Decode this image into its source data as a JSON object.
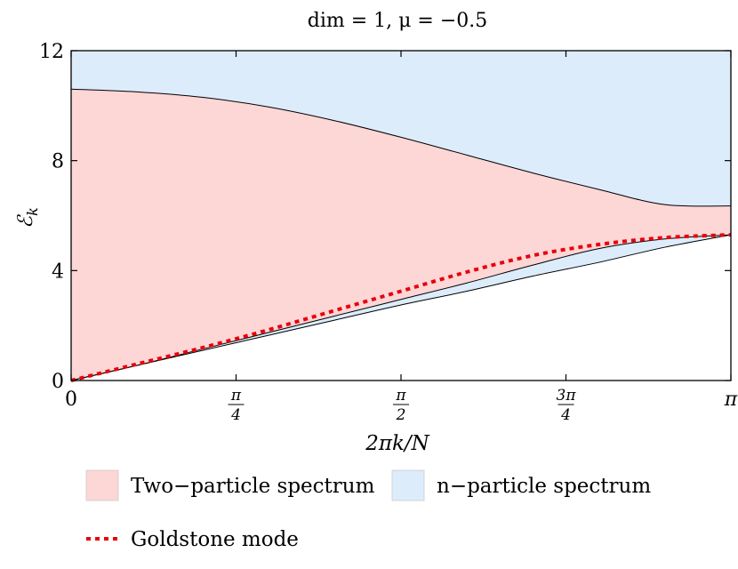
{
  "chart_data": {
    "type": "area",
    "title": "dim = 1, μ = −0.5",
    "xlabel": "2πk/N",
    "ylabel": "ℰ",
    "ylabel_sub": "k",
    "xlim": [
      0,
      3.14159
    ],
    "ylim": [
      0,
      12
    ],
    "yticks": [
      0,
      4,
      8,
      12
    ],
    "ytick_labels": [
      "0",
      "4",
      "8",
      "12"
    ],
    "xticks": [
      {
        "value": 0,
        "label": "0",
        "num": "",
        "den": ""
      },
      {
        "value": 0.7854,
        "label": "",
        "num": "π",
        "den": "4"
      },
      {
        "value": 1.5708,
        "label": "",
        "num": "π",
        "den": "2"
      },
      {
        "value": 2.3562,
        "label": "",
        "num": "3π",
        "den": "4"
      },
      {
        "value": 3.14159,
        "label": "π",
        "num": "",
        "den": ""
      }
    ],
    "x": [
      0,
      0.3142,
      0.6283,
      0.9425,
      1.2566,
      1.5708,
      1.885,
      2.1991,
      2.5133,
      2.8274,
      3.1416
    ],
    "series": [
      {
        "name": "n−particle spectrum",
        "kind": "fill-band",
        "lower": [
          10.6,
          10.5,
          10.3,
          9.95,
          9.45,
          8.85,
          8.2,
          7.55,
          6.95,
          6.4,
          6.35
        ],
        "upper": [
          12,
          12,
          12,
          12,
          12,
          12,
          12,
          12,
          12,
          12,
          12
        ],
        "color": "#dcecfb"
      },
      {
        "name": "Two−particle spectrum",
        "kind": "fill-band",
        "lower": [
          0,
          0.55,
          1.1,
          1.65,
          2.2,
          2.75,
          3.25,
          3.8,
          4.3,
          4.85,
          5.3
        ],
        "upper": [
          10.6,
          10.5,
          10.3,
          9.95,
          9.45,
          8.85,
          8.2,
          7.55,
          6.95,
          6.4,
          6.35
        ],
        "color": "#fdd6d6"
      },
      {
        "name": "Goldstone mode",
        "kind": "dotted-line",
        "values": [
          0,
          0.6,
          1.2,
          1.85,
          2.55,
          3.25,
          3.95,
          4.55,
          4.95,
          5.2,
          5.3
        ],
        "color": "#e8000b"
      }
    ],
    "lower_edge_blue": [
      0,
      0.55,
      1.15,
      1.75,
      2.35,
      2.95,
      3.55,
      4.2,
      4.8,
      5.15,
      5.3
    ],
    "legend": [
      {
        "label": "Two−particle spectrum",
        "kind": "patch",
        "color": "#fdd6d6"
      },
      {
        "label": "n−particle spectrum",
        "kind": "patch",
        "color": "#dcecfb"
      },
      {
        "label": "Goldstone mode",
        "kind": "dotted",
        "color": "#e8000b"
      }
    ],
    "legend_position": "bottom",
    "grid": false
  }
}
